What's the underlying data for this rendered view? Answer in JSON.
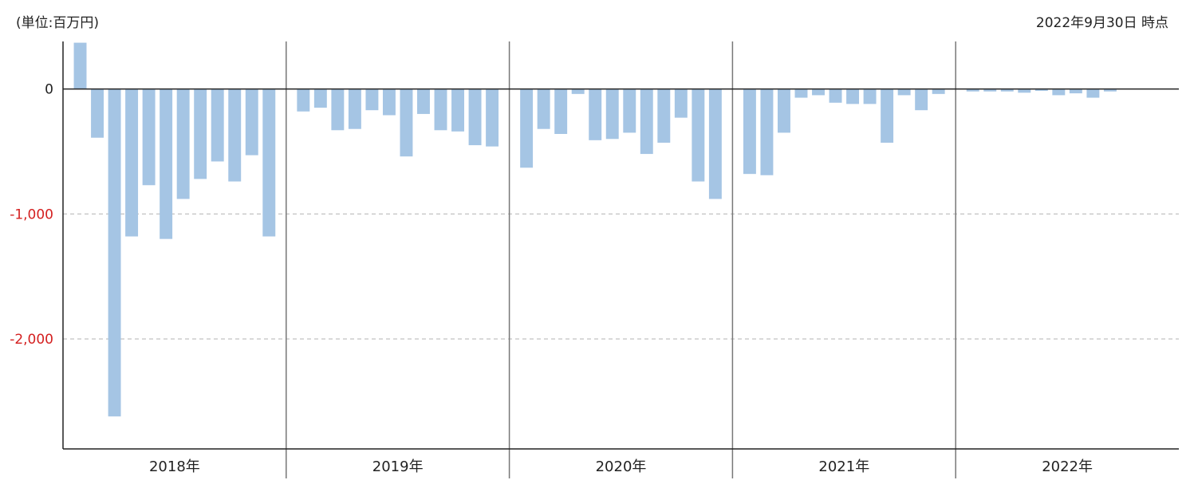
{
  "header": {
    "unit": "(単位:百万円)",
    "as_of": "2022年9月30日 時点"
  },
  "colors": {
    "bar": "#a5c5e4",
    "negative_tick": "#d42020",
    "axis": "#222222",
    "grid": "#bbbbbb",
    "separator": "#777777"
  },
  "chart_data": {
    "type": "bar",
    "ylim": [
      -2880,
      380
    ],
    "yticks": [
      {
        "value": 0,
        "label": "0"
      },
      {
        "value": -1000,
        "label": "-1,000"
      },
      {
        "value": -2000,
        "label": "-2,000"
      }
    ],
    "grid": "dashed-horizontal",
    "groups": [
      {
        "label": "2018年",
        "values": [
          370,
          -390,
          -2620,
          -1180,
          -770,
          -1200,
          -880,
          -720,
          -580,
          -740,
          -530,
          -1180
        ]
      },
      {
        "label": "2019年",
        "values": [
          -180,
          -150,
          -330,
          -320,
          -170,
          -210,
          -540,
          -200,
          -330,
          -340,
          -450,
          -460
        ]
      },
      {
        "label": "2020年",
        "values": [
          -630,
          -320,
          -360,
          -40,
          -410,
          -400,
          -350,
          -520,
          -430,
          -230,
          -740,
          -880
        ]
      },
      {
        "label": "2021年",
        "values": [
          -680,
          -690,
          -350,
          -70,
          -50,
          -110,
          -120,
          -120,
          -430,
          -50,
          -170,
          -40
        ]
      },
      {
        "label": "2022年",
        "values": [
          -20,
          -20,
          -20,
          -30,
          -15,
          -50,
          -35,
          -70,
          -20
        ]
      }
    ]
  }
}
